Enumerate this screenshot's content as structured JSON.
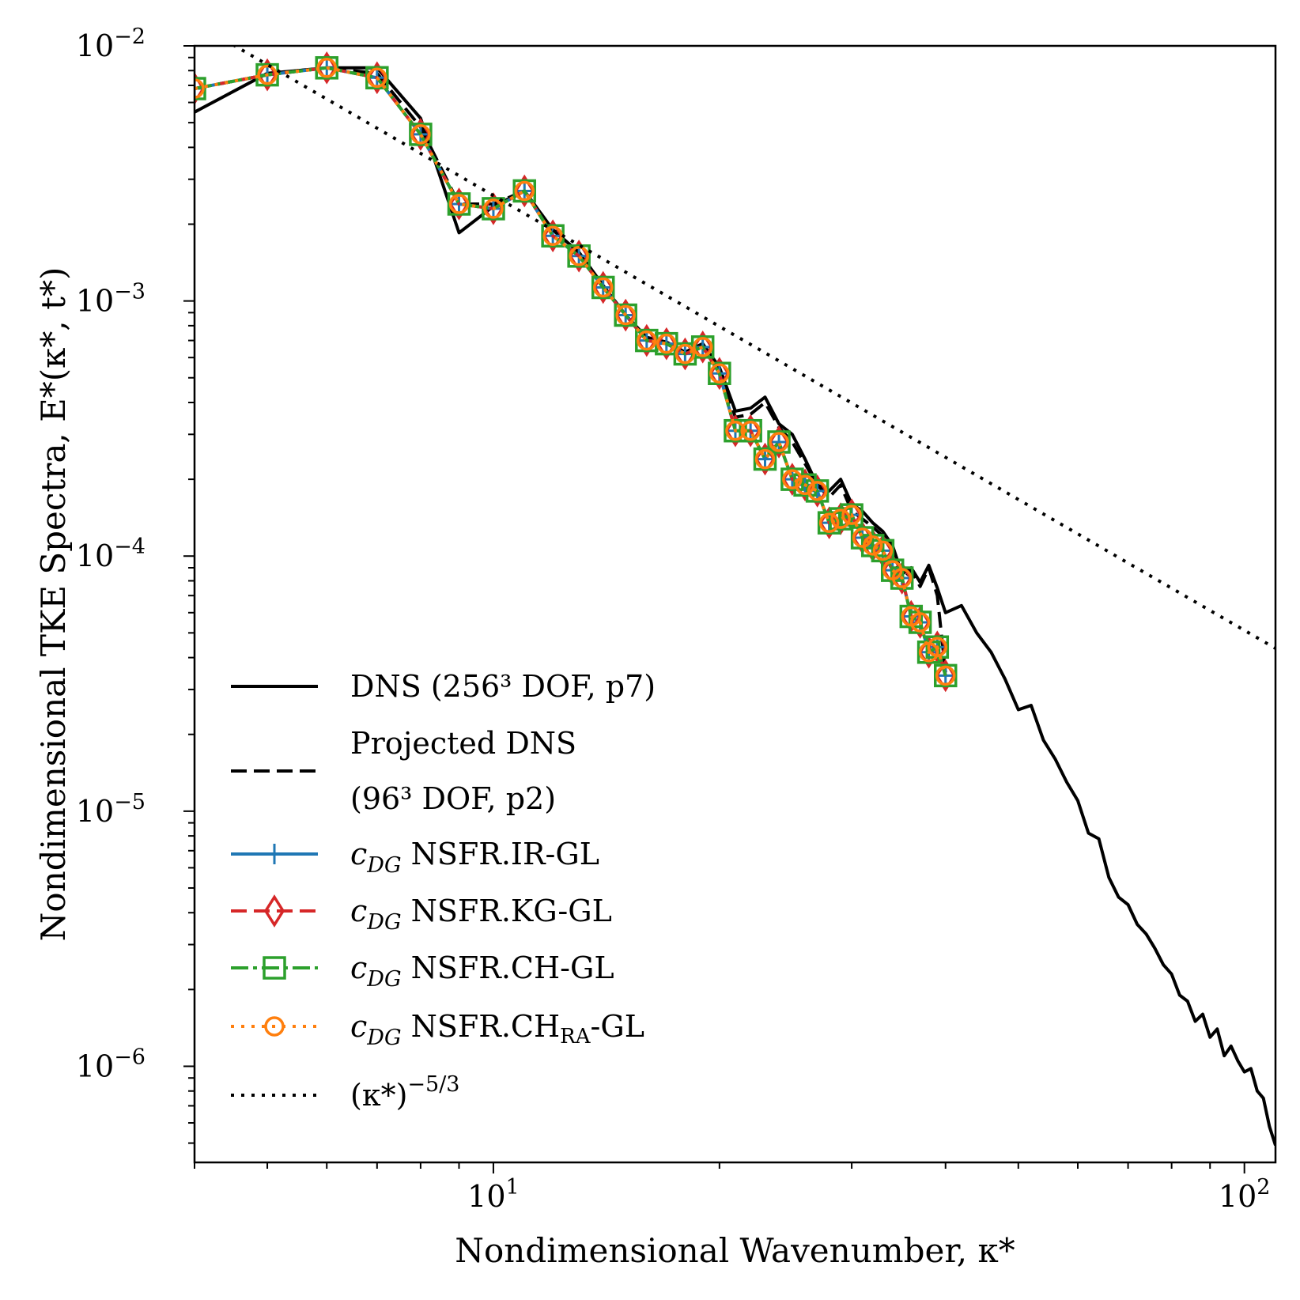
{
  "chart_data": {
    "type": "line",
    "title": "",
    "xlabel": "Nondimensional Wavenumber, κ*",
    "ylabel": "Nondimensional TKE Spectra, E*(κ*, t*)",
    "xscale": "log",
    "yscale": "log",
    "xlim": [
      4,
      110
    ],
    "ylim": [
      4.2e-07,
      0.01
    ],
    "x_ticks": [
      {
        "value": 10,
        "label": "10",
        "exp": "1"
      },
      {
        "value": 100,
        "label": "10",
        "exp": "2"
      }
    ],
    "y_ticks": [
      {
        "value": 0.01,
        "label": "10",
        "exp": "−2"
      },
      {
        "value": 0.001,
        "label": "10",
        "exp": "−3"
      },
      {
        "value": 0.0001,
        "label": "10",
        "exp": "−4"
      },
      {
        "value": 1e-05,
        "label": "10",
        "exp": "−5"
      },
      {
        "value": 1e-06,
        "label": "10",
        "exp": "−6"
      }
    ],
    "legend_position": "lower-left",
    "series": [
      {
        "name": "DNS (256³ DOF, p7)",
        "legend_lines": [
          "DNS (256³ DOF, p7)"
        ],
        "color": "#000000",
        "style": "solid",
        "marker": "none",
        "x": [
          4,
          5,
          6,
          7,
          8,
          9,
          10,
          11,
          12,
          13,
          14,
          15,
          16,
          17,
          18,
          19,
          20,
          21,
          22,
          23,
          24,
          25,
          26,
          27,
          28,
          29,
          30,
          31,
          32,
          33,
          34,
          35,
          36,
          37,
          38,
          39,
          40,
          42,
          44,
          46,
          48,
          50,
          52,
          54,
          56,
          58,
          60,
          62,
          64,
          66,
          68,
          70,
          72,
          74,
          76,
          78,
          80,
          82,
          84,
          86,
          88,
          90,
          92,
          94,
          96,
          98,
          100,
          102,
          104,
          106,
          108,
          110
        ],
        "y": [
          0.0055,
          0.0078,
          0.0082,
          0.0082,
          0.0052,
          0.00185,
          0.00235,
          0.0027,
          0.0019,
          0.00155,
          0.00115,
          0.00088,
          0.00072,
          0.00069,
          0.00063,
          0.00068,
          0.00055,
          0.00037,
          0.00038,
          0.00042,
          0.00033,
          0.0003,
          0.00024,
          0.00019,
          0.00018,
          0.0002,
          0.00016,
          0.00015,
          0.000135,
          0.000125,
          0.00011,
          8.5e-05,
          9e-05,
          7.9e-05,
          9.2e-05,
          7.5e-05,
          6e-05,
          6.4e-05,
          5e-05,
          4.2e-05,
          3.3e-05,
          2.5e-05,
          2.6e-05,
          1.9e-05,
          1.6e-05,
          1.3e-05,
          1.1e-05,
          8.2e-06,
          7.8e-06,
          5.5e-06,
          4.6e-06,
          4.3e-06,
          3.6e-06,
          3.3e-06,
          2.9e-06,
          2.5e-06,
          2.3e-06,
          1.9e-06,
          1.8e-06,
          1.5e-06,
          1.6e-06,
          1.3e-06,
          1.4e-06,
          1.1e-06,
          1.2e-06,
          1.05e-06,
          9.5e-07,
          9.8e-07,
          8e-07,
          7.5e-07,
          5.8e-07,
          4.9e-07
        ]
      },
      {
        "name": "Projected DNS (96³ DOF, p2)",
        "legend_lines": [
          "Projected DNS",
          "(96³ DOF, p2)"
        ],
        "color": "#000000",
        "style": "dashed",
        "marker": "none",
        "x": [
          4,
          5,
          6,
          7,
          8,
          9,
          10,
          11,
          12,
          13,
          14,
          15,
          16,
          17,
          18,
          19,
          20,
          21,
          22,
          23,
          24,
          25,
          26,
          27,
          28,
          29,
          30,
          31,
          32,
          33,
          34,
          35,
          36,
          37,
          38,
          39,
          40
        ],
        "y": [
          0.0068,
          0.0077,
          0.0082,
          0.0078,
          0.0048,
          0.0024,
          0.0024,
          0.0027,
          0.0019,
          0.00155,
          0.00115,
          0.00088,
          0.0007,
          0.00069,
          0.00063,
          0.00067,
          0.00054,
          0.00035,
          0.00036,
          0.0004,
          0.00032,
          0.00028,
          0.00023,
          0.00019,
          0.00017,
          0.00019,
          0.00015,
          0.00014,
          0.00013,
          0.00012,
          0.000105,
          8e-05,
          8.8e-05,
          7.6e-05,
          9e-05,
          7e-05,
          3.5e-05
        ]
      },
      {
        "name": "cDG NSFR.IR-GL",
        "legend_main": "NSFR.IR-GL",
        "color": "#1f77b4",
        "style": "solid",
        "marker": "plus",
        "x": [
          4,
          5,
          6,
          7,
          8,
          9,
          10,
          11,
          12,
          13,
          14,
          15,
          16,
          17,
          18,
          19,
          20,
          21,
          22,
          23,
          24,
          25,
          26,
          27,
          28,
          29,
          30,
          31,
          32,
          33,
          34,
          35,
          36,
          37,
          38,
          39,
          40
        ],
        "y": [
          0.0068,
          0.0077,
          0.0082,
          0.0075,
          0.0045,
          0.0024,
          0.0023,
          0.0027,
          0.0018,
          0.0015,
          0.00113,
          0.00088,
          0.0007,
          0.00068,
          0.00062,
          0.00066,
          0.00052,
          0.00031,
          0.00031,
          0.00024,
          0.00028,
          0.0002,
          0.00019,
          0.00018,
          0.000135,
          0.00014,
          0.000145,
          0.000118,
          0.00011,
          0.000105,
          8.8e-05,
          8.2e-05,
          5.8e-05,
          5.5e-05,
          4.2e-05,
          4.4e-05,
          3.4e-05
        ]
      },
      {
        "name": "cDG NSFR.KG-GL",
        "legend_main": "NSFR.KG-GL",
        "color": "#d62728",
        "style": "dashed",
        "marker": "diamond",
        "x": [
          4,
          5,
          6,
          7,
          8,
          9,
          10,
          11,
          12,
          13,
          14,
          15,
          16,
          17,
          18,
          19,
          20,
          21,
          22,
          23,
          24,
          25,
          26,
          27,
          28,
          29,
          30,
          31,
          32,
          33,
          34,
          35,
          36,
          37,
          38,
          39,
          40
        ],
        "y": [
          0.0068,
          0.0077,
          0.0082,
          0.0075,
          0.0045,
          0.0024,
          0.0023,
          0.0027,
          0.0018,
          0.0015,
          0.00113,
          0.00088,
          0.0007,
          0.00068,
          0.00062,
          0.00066,
          0.00052,
          0.00031,
          0.00031,
          0.00024,
          0.00028,
          0.0002,
          0.00019,
          0.00018,
          0.000135,
          0.00014,
          0.000145,
          0.000118,
          0.00011,
          0.000105,
          8.8e-05,
          8.2e-05,
          5.8e-05,
          5.5e-05,
          4.2e-05,
          4.4e-05,
          3.4e-05
        ]
      },
      {
        "name": "cDG NSFR.CH-GL",
        "legend_main": "NSFR.CH-GL",
        "color": "#2ca02c",
        "style": "dashdot",
        "marker": "square",
        "x": [
          4,
          5,
          6,
          7,
          8,
          9,
          10,
          11,
          12,
          13,
          14,
          15,
          16,
          17,
          18,
          19,
          20,
          21,
          22,
          23,
          24,
          25,
          26,
          27,
          28,
          29,
          30,
          31,
          32,
          33,
          34,
          35,
          36,
          37,
          38,
          39,
          40
        ],
        "y": [
          0.0068,
          0.0077,
          0.0082,
          0.0075,
          0.0045,
          0.0024,
          0.0023,
          0.0027,
          0.0018,
          0.0015,
          0.00113,
          0.00088,
          0.0007,
          0.00068,
          0.00062,
          0.00066,
          0.00052,
          0.00031,
          0.00031,
          0.00024,
          0.00028,
          0.0002,
          0.00019,
          0.00018,
          0.000135,
          0.00014,
          0.000145,
          0.000118,
          0.00011,
          0.000105,
          8.8e-05,
          8.2e-05,
          5.8e-05,
          5.5e-05,
          4.2e-05,
          4.4e-05,
          3.4e-05
        ]
      },
      {
        "name": "cDG NSFR.CHRA-GL",
        "legend_main": "NSFR.CH",
        "legend_sub": "RA",
        "legend_tail": "-GL",
        "color": "#ff7f0e",
        "style": "dotted",
        "marker": "circle",
        "x": [
          4,
          5,
          6,
          7,
          8,
          9,
          10,
          11,
          12,
          13,
          14,
          15,
          16,
          17,
          18,
          19,
          20,
          21,
          22,
          23,
          24,
          25,
          26,
          27,
          28,
          29,
          30,
          31,
          32,
          33,
          34,
          35,
          36,
          37,
          38,
          39,
          40
        ],
        "y": [
          0.0068,
          0.0077,
          0.0082,
          0.0075,
          0.0045,
          0.0024,
          0.0023,
          0.0027,
          0.0018,
          0.0015,
          0.00113,
          0.00088,
          0.0007,
          0.00068,
          0.00062,
          0.00066,
          0.00052,
          0.00031,
          0.00031,
          0.00024,
          0.00028,
          0.0002,
          0.00019,
          0.00018,
          0.000135,
          0.00014,
          0.000145,
          0.000118,
          0.00011,
          0.000105,
          8.8e-05,
          8.2e-05,
          5.8e-05,
          5.5e-05,
          4.2e-05,
          4.4e-05,
          3.4e-05
        ]
      },
      {
        "name": "(κ*)^−5/3",
        "legend_main": "(κ*)",
        "legend_sup": "−5/3",
        "color": "#000000",
        "style": "dotted",
        "marker": "none",
        "x": [
          4.5,
          110
        ],
        "y": [
          0.0101,
          4.35e-05
        ]
      }
    ]
  }
}
